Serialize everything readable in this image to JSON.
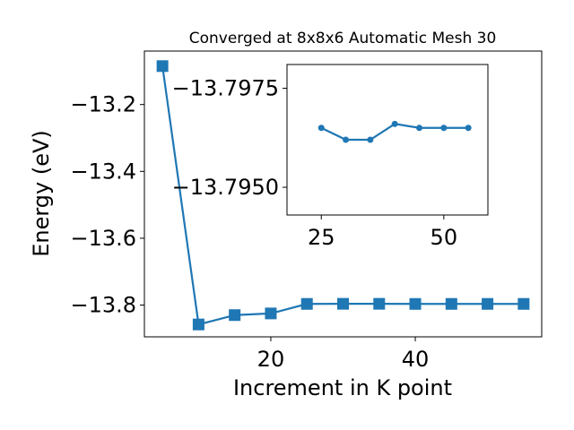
{
  "chart_data": [
    {
      "type": "line",
      "title": "Converged at 8x8x6 Automatic Mesh 30",
      "xlabel": "Increment in K point",
      "ylabel": "Energy (eV)",
      "xlim": [
        2.5,
        57.5
      ],
      "ylim": [
        -13.895,
        -13.04
      ],
      "xticks": [
        20,
        40
      ],
      "yticks": [
        -13.2,
        -13.4,
        -13.6,
        -13.8
      ],
      "xtick_labels": [
        "20",
        "40"
      ],
      "ytick_labels": [
        "−13.2",
        "−13.4",
        "−13.6",
        "−13.8"
      ],
      "marker": "square",
      "color": "#1f77b4",
      "grid": false,
      "series": [
        {
          "x": [
            5,
            10,
            15,
            20,
            25,
            30,
            35,
            40,
            45,
            50,
            55
          ],
          "y": [
            -13.085,
            -13.858,
            -13.83,
            -13.825,
            -13.7965,
            -13.7962,
            -13.7962,
            -13.7966,
            -13.7965,
            -13.7965,
            -13.7965
          ]
        }
      ]
    },
    {
      "type": "line",
      "title": "",
      "xlim": [
        18,
        59
      ],
      "ylim": [
        -13.7943,
        -13.7981
      ],
      "xticks": [
        25,
        50
      ],
      "yticks": [
        -13.7975,
        -13.795
      ],
      "xtick_labels": [
        "25",
        "50"
      ],
      "ytick_labels": [
        "−13.7975",
        "−13.7950"
      ],
      "marker": "circle",
      "color": "#1f77b4",
      "grid": false,
      "series": [
        {
          "x": [
            25,
            30,
            35,
            40,
            45,
            50,
            55
          ],
          "y": [
            -13.7965,
            -13.7962,
            -13.7962,
            -13.7966,
            -13.7965,
            -13.7965,
            -13.7965
          ]
        }
      ]
    }
  ]
}
